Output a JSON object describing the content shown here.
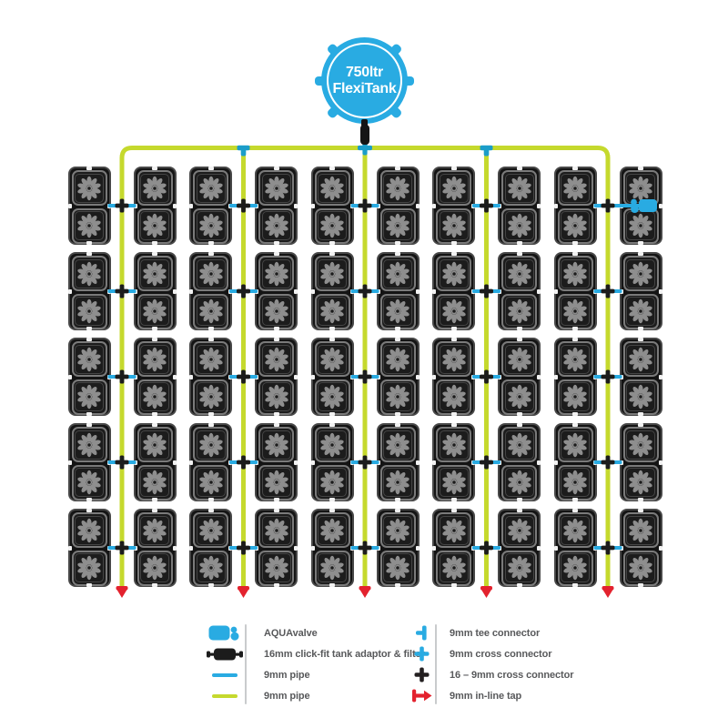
{
  "tank": {
    "line1": "750ltr",
    "line2": "FlexiTank"
  },
  "colors": {
    "blue": "#29abe2",
    "teal_connector": "#1b9dc9",
    "green": "#c5d92d",
    "red": "#e3222e",
    "black_part": "#1c1c1c",
    "legend_text": "#58595b"
  },
  "diagram": {
    "rows": 5,
    "tray_pairs_per_row": 5,
    "pots_per_tray": 2,
    "aquavalve_marker": {
      "row_index": 0,
      "pair_index": 4,
      "side": "right"
    }
  },
  "legend": {
    "left": [
      {
        "icon": "aquavalve-icon",
        "label": "AQUAvalve"
      },
      {
        "icon": "tank-adaptor-icon",
        "label": "16mm click-fit tank adaptor & filter"
      },
      {
        "icon": "blue-pipe-icon",
        "label": "9mm pipe"
      },
      {
        "icon": "green-pipe-icon",
        "label": "9mm pipe"
      }
    ],
    "right": [
      {
        "icon": "tee-connector-icon",
        "label": "9mm tee connector"
      },
      {
        "icon": "cross-connector-icon",
        "label": "9mm cross connector"
      },
      {
        "icon": "cross-16-9-icon",
        "label": "16 – 9mm cross connector"
      },
      {
        "icon": "inline-tap-icon",
        "label": "9mm in-line tap"
      }
    ]
  }
}
